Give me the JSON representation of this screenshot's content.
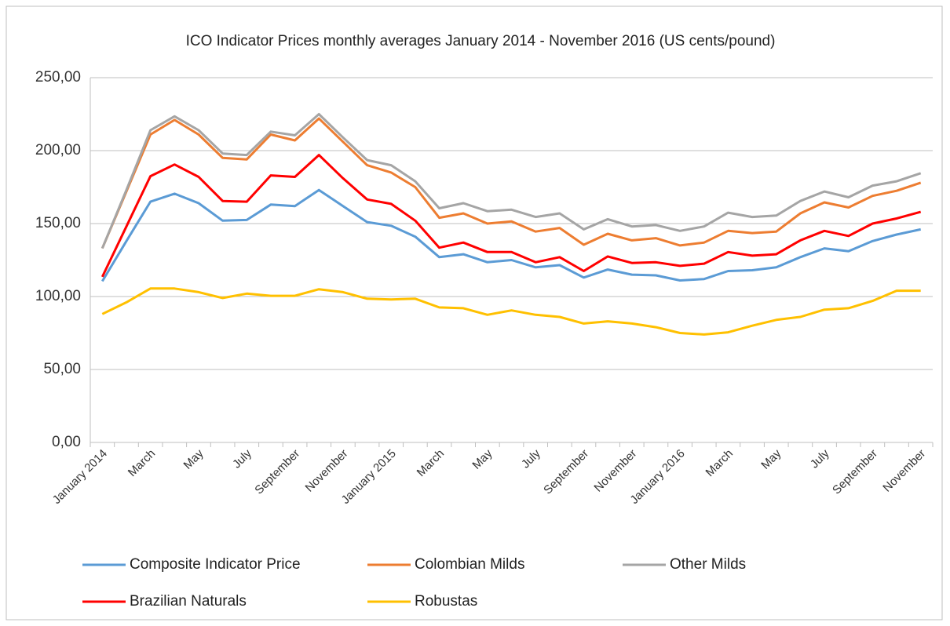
{
  "chart_data": {
    "type": "line",
    "title": "ICO Indicator Prices monthly averages January 2014 - November 2016 (US cents/pound)",
    "categories": [
      "January 2014",
      null,
      "March",
      null,
      "May",
      null,
      "July",
      null,
      "September",
      null,
      "November",
      null,
      "January 2015",
      null,
      "March",
      null,
      "May",
      null,
      "July",
      null,
      "September",
      null,
      "November",
      null,
      "January 2016",
      null,
      "March",
      null,
      "May",
      null,
      "July",
      null,
      "September",
      null,
      "November"
    ],
    "series": [
      {
        "name": "Composite Indicator Price",
        "color": "#5b9bd5",
        "values": [
          110.5,
          138,
          165,
          170.5,
          164,
          152,
          152.5,
          163,
          162,
          173,
          162,
          151,
          148.5,
          141,
          127,
          129,
          123.5,
          125,
          120,
          121.5,
          113,
          118.5,
          115,
          114.5,
          111,
          112,
          117.5,
          118,
          120,
          127,
          133,
          131,
          138,
          142.5,
          146
        ]
      },
      {
        "name": "Colombian Milds",
        "color": "#ed7d31",
        "values": [
          133,
          172,
          211,
          221,
          211,
          195,
          194,
          211,
          207,
          222,
          206,
          190,
          185,
          175,
          154,
          157,
          150,
          151.5,
          144.5,
          147,
          135.5,
          143,
          138.5,
          140,
          135,
          137,
          145,
          143.5,
          144.5,
          157,
          164.5,
          161,
          169,
          172.5,
          178
        ]
      },
      {
        "name": "Other Milds",
        "color": "#a5a5a5",
        "values": [
          133,
          173,
          214,
          223.5,
          214,
          198,
          197,
          213,
          210.5,
          225,
          209,
          193.5,
          190,
          179,
          160.5,
          164,
          158.5,
          159.5,
          154.5,
          157,
          146,
          153,
          148,
          149,
          145,
          148,
          157.5,
          154.5,
          155.5,
          165.5,
          172,
          168,
          176,
          179,
          184.5
        ]
      },
      {
        "name": "Brazilian Naturals",
        "color": "#ff0000",
        "values": [
          113.5,
          148,
          182.5,
          190.5,
          182,
          165.5,
          165,
          183,
          182,
          197,
          181,
          166.5,
          163.5,
          152,
          133.5,
          137,
          130.5,
          130.5,
          123.5,
          127,
          117.5,
          127.5,
          123,
          123.5,
          121,
          122.5,
          130.5,
          128,
          129,
          138.5,
          145,
          141.5,
          150,
          153.5,
          158
        ]
      },
      {
        "name": "Robustas",
        "color": "#ffc000",
        "values": [
          88,
          96,
          105.5,
          105.5,
          103,
          99,
          102,
          100.5,
          100.5,
          105,
          103,
          98.5,
          98,
          98.5,
          92.5,
          92,
          87.5,
          90.5,
          87.5,
          86,
          81.5,
          83,
          81.5,
          79,
          75,
          74,
          75.5,
          80,
          84,
          86,
          91,
          92,
          97,
          104,
          104
        ]
      }
    ],
    "ylim": [
      0,
      250
    ],
    "yticks": [
      {
        "value": 0,
        "label": "0,00"
      },
      {
        "value": 50,
        "label": "50,00"
      },
      {
        "value": 100,
        "label": "100,00"
      },
      {
        "value": 150,
        "label": "150,00"
      },
      {
        "value": 200,
        "label": "200,00"
      },
      {
        "value": 250,
        "label": "250,00"
      }
    ],
    "grid": true,
    "legend": "bottom"
  }
}
